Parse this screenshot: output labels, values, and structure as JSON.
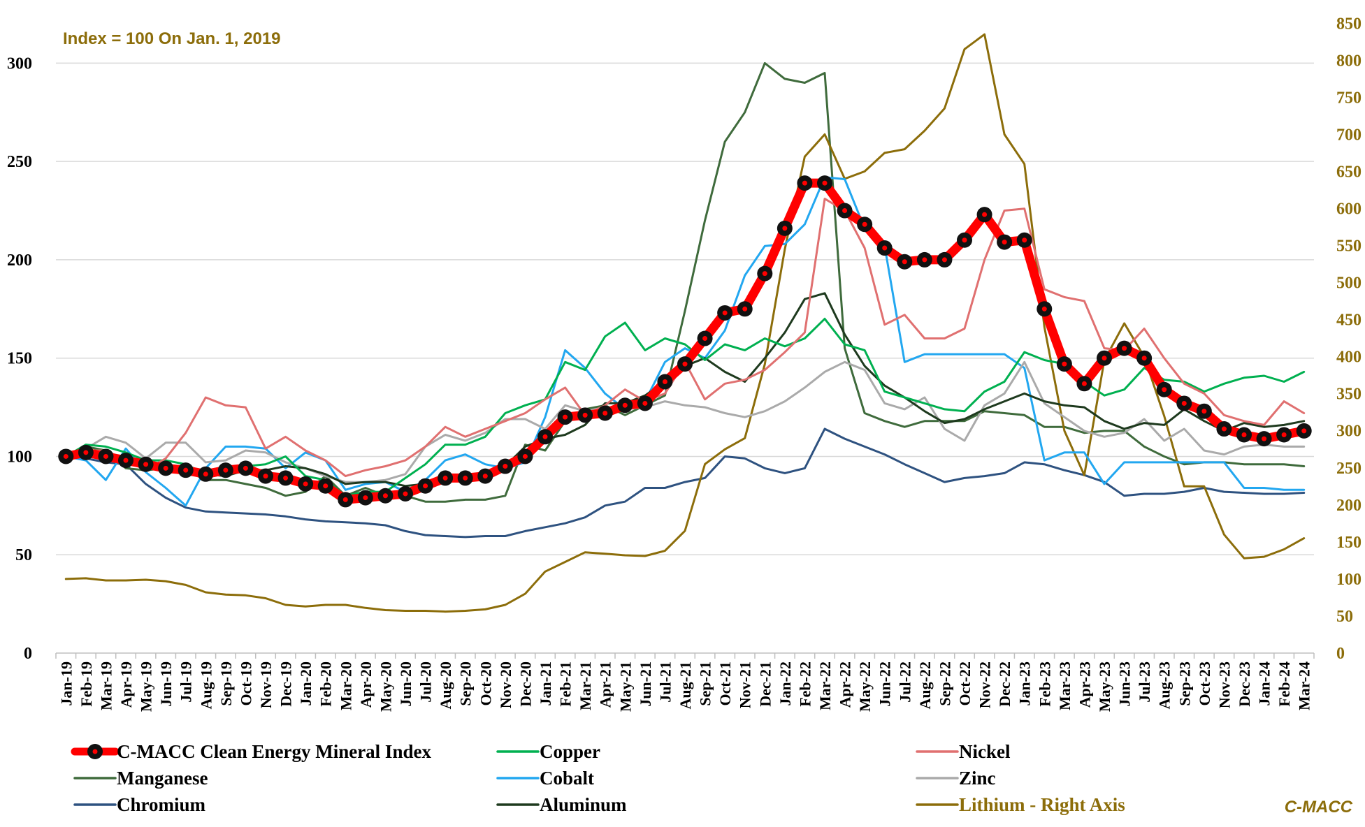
{
  "chart_data": {
    "type": "line",
    "subtitle": "Index = 100 On Jan. 1, 2019",
    "credit": "C-MACC",
    "left_axis": {
      "ylim": [
        0,
        325
      ],
      "ticks": [
        0,
        50,
        100,
        150,
        200,
        250,
        300
      ]
    },
    "right_axis": {
      "ylim": [
        0,
        862.5
      ],
      "ticks": [
        0,
        50,
        100,
        150,
        200,
        250,
        300,
        350,
        400,
        450,
        500,
        550,
        600,
        650,
        700,
        750,
        800,
        850
      ]
    },
    "grid": "horizontal",
    "legend_position": "bottom",
    "categories": [
      "Jan-19",
      "Feb-19",
      "Mar-19",
      "Apr-19",
      "May-19",
      "Jun-19",
      "Jul-19",
      "Aug-19",
      "Sep-19",
      "Oct-19",
      "Nov-19",
      "Dec-19",
      "Jan-20",
      "Feb-20",
      "Mar-20",
      "Apr-20",
      "May-20",
      "Jun-20",
      "Jul-20",
      "Aug-20",
      "Sep-20",
      "Oct-20",
      "Nov-20",
      "Dec-20",
      "Jan-21",
      "Feb-21",
      "Mar-21",
      "Apr-21",
      "May-21",
      "Jun-21",
      "Jul-21",
      "Aug-21",
      "Sep-21",
      "Oct-21",
      "Nov-21",
      "Dec-21",
      "Jan-22",
      "Feb-22",
      "Mar-22",
      "Apr-22",
      "May-22",
      "Jun-22",
      "Jul-22",
      "Aug-22",
      "Sep-22",
      "Oct-22",
      "Nov-22",
      "Dec-22",
      "Jan-23",
      "Feb-23",
      "Mar-23",
      "Apr-23",
      "May-23",
      "Jun-23",
      "Jul-23",
      "Aug-23",
      "Sep-23",
      "Oct-23",
      "Nov-23",
      "Dec-23",
      "Jan-24",
      "Feb-24",
      "Mar-24"
    ],
    "series": [
      {
        "name": "Chromium",
        "color": "#2e5280",
        "axis": "left",
        "width": 3,
        "values": [
          100,
          99,
          97,
          96,
          86,
          79,
          74,
          72,
          71.5,
          71,
          70.5,
          69.5,
          68,
          67,
          66.5,
          66,
          65,
          62,
          60,
          59.5,
          59,
          59.5,
          59.5,
          62,
          64,
          66,
          69,
          75,
          77,
          84,
          84,
          87,
          89,
          100,
          99,
          94,
          91.5,
          94,
          114,
          109,
          105,
          101,
          96,
          91.5,
          87,
          89,
          90,
          91.5,
          97,
          96,
          93,
          90.5,
          87,
          80,
          81,
          81,
          82,
          84,
          82,
          81.5,
          81,
          81,
          81.5
        ]
      },
      {
        "name": "Manganese",
        "color": "#3f6b3c",
        "axis": "left",
        "width": 3,
        "values": [
          100,
          105,
          103,
          94,
          93,
          94,
          93,
          88,
          88,
          86,
          84,
          80,
          82,
          90,
          80,
          84,
          80,
          80,
          77,
          77,
          78,
          78,
          80,
          106,
          103,
          118,
          124,
          126,
          121,
          126,
          131,
          174,
          220,
          260,
          275,
          300,
          292,
          290,
          295,
          155,
          122,
          118,
          115,
          118,
          118,
          118,
          123,
          122,
          121,
          115,
          115,
          112,
          113,
          113,
          105,
          100,
          96,
          97,
          97,
          96,
          96,
          96,
          95
        ]
      },
      {
        "name": "Lithium - Right Axis",
        "color": "#8c6d0a",
        "axis": "right",
        "width": 3,
        "values": [
          100,
          101,
          98,
          98,
          99,
          97,
          92,
          82,
          79,
          78,
          74,
          65,
          63,
          65,
          65,
          61,
          58,
          57,
          57,
          56,
          57,
          59,
          65,
          80,
          110,
          123,
          136,
          134,
          132,
          131,
          138,
          165,
          255,
          275,
          290,
          390,
          545,
          670,
          700,
          640,
          650,
          675,
          680,
          705,
          735,
          815,
          835,
          700,
          660,
          440,
          300,
          240,
          395,
          445,
          400,
          320,
          225,
          225,
          160,
          128,
          130,
          140,
          155
        ]
      },
      {
        "name": "Cobalt",
        "color": "#22a7f0",
        "axis": "left",
        "width": 3,
        "values": [
          100,
          98,
          88,
          104,
          92,
          84,
          75,
          94,
          105,
          105,
          104,
          94,
          102,
          98,
          83,
          86,
          87,
          82,
          88,
          98,
          101,
          96,
          94,
          97,
          120,
          154,
          145,
          132,
          124,
          128,
          148,
          155,
          150,
          164,
          192,
          207,
          208,
          218,
          242,
          241,
          216,
          207,
          148,
          152,
          152,
          152,
          152,
          152,
          145,
          98,
          102,
          102,
          86,
          97,
          97,
          97,
          97,
          97,
          97,
          84,
          84,
          83,
          83
        ]
      },
      {
        "name": "Zinc",
        "color": "#aaaaaa",
        "axis": "left",
        "width": 3,
        "values": [
          100,
          104,
          110,
          107,
          99,
          107,
          107,
          97,
          98,
          103,
          102,
          97,
          94,
          90,
          87,
          87,
          88,
          91,
          105,
          111,
          108,
          112,
          119,
          119,
          114,
          126,
          123,
          125,
          124,
          125,
          128,
          126,
          125,
          122,
          120,
          123,
          128,
          135,
          143,
          148,
          144,
          127,
          124,
          130,
          114,
          108,
          126,
          132,
          148,
          127,
          120,
          113,
          110,
          112,
          119,
          108,
          114,
          103,
          101,
          105,
          106,
          105,
          105
        ]
      },
      {
        "name": "Aluminum",
        "color": "#1e3a1e",
        "axis": "left",
        "width": 3,
        "values": [
          100,
          101,
          100,
          98,
          96,
          94,
          93,
          91,
          90,
          93,
          93,
          95,
          94,
          91,
          86,
          87,
          87,
          85,
          86,
          91,
          88,
          91,
          95,
          105,
          109,
          111,
          116,
          127,
          127,
          131,
          138,
          146,
          150,
          143,
          138,
          150,
          163,
          180,
          183,
          162,
          146,
          136,
          130,
          123,
          117,
          119,
          124,
          128,
          132,
          128,
          126,
          125,
          118,
          114,
          117,
          116,
          124,
          118,
          113,
          117,
          115,
          116,
          118
        ]
      },
      {
        "name": "Copper",
        "color": "#00b050",
        "axis": "left",
        "width": 3,
        "values": [
          100,
          106,
          105,
          102,
          98,
          98,
          96,
          91,
          92,
          95,
          96,
          100,
          90,
          88,
          80,
          82,
          82,
          89,
          96,
          106,
          106,
          110,
          122,
          126,
          129,
          148,
          144,
          161,
          168,
          154,
          160,
          157,
          149,
          157,
          154,
          160,
          156,
          160,
          170,
          157,
          154,
          133,
          130,
          127,
          124,
          123,
          133,
          138,
          153,
          149,
          147,
          138,
          131,
          134,
          145,
          139,
          138,
          133,
          137,
          140,
          141,
          138,
          143
        ]
      },
      {
        "name": "Nickel",
        "color": "#e07070",
        "axis": "left",
        "width": 3,
        "values": [
          100,
          103,
          103,
          98,
          93,
          99,
          112,
          130,
          126,
          125,
          104,
          110,
          103,
          98,
          90,
          93,
          95,
          98,
          105,
          115,
          110,
          114,
          118,
          122,
          129,
          135,
          121,
          126,
          134,
          128,
          132,
          148,
          129,
          137,
          139,
          144,
          153,
          163,
          231,
          225,
          206,
          167,
          172,
          160,
          160,
          165,
          200,
          225,
          226,
          185,
          181,
          179,
          155,
          154,
          165,
          150,
          137,
          132,
          121,
          118,
          116,
          128,
          122
        ]
      },
      {
        "name": "C-MACC Clean Energy Mineral Index",
        "color": "#ff0000",
        "axis": "left",
        "width": 13,
        "markers": true,
        "values": [
          100,
          102,
          100,
          98,
          96,
          94,
          93,
          91,
          93,
          94,
          90,
          89,
          86,
          85,
          78,
          79,
          80,
          81,
          85,
          89,
          89,
          90,
          95,
          100,
          110,
          120,
          121,
          122,
          126,
          127,
          138,
          147,
          160,
          173,
          175,
          193,
          216,
          239,
          239,
          225,
          218,
          206,
          199,
          200,
          200,
          210,
          223,
          209,
          210,
          175,
          147,
          137,
          150,
          155,
          150,
          134,
          127,
          123,
          114,
          111,
          109,
          111,
          113
        ]
      }
    ]
  },
  "legend": [
    {
      "label": "C-MACC Clean Energy Mineral Index",
      "series": 8
    },
    {
      "label": "Copper",
      "series": 6
    },
    {
      "label": "Nickel",
      "series": 7
    },
    {
      "label": "Manganese",
      "series": 1
    },
    {
      "label": "Cobalt",
      "series": 3
    },
    {
      "label": "Zinc",
      "series": 4
    },
    {
      "label": "Chromium",
      "series": 0
    },
    {
      "label": "Aluminum",
      "series": 5
    },
    {
      "label": "Lithium - Right Axis",
      "series": 2
    }
  ]
}
